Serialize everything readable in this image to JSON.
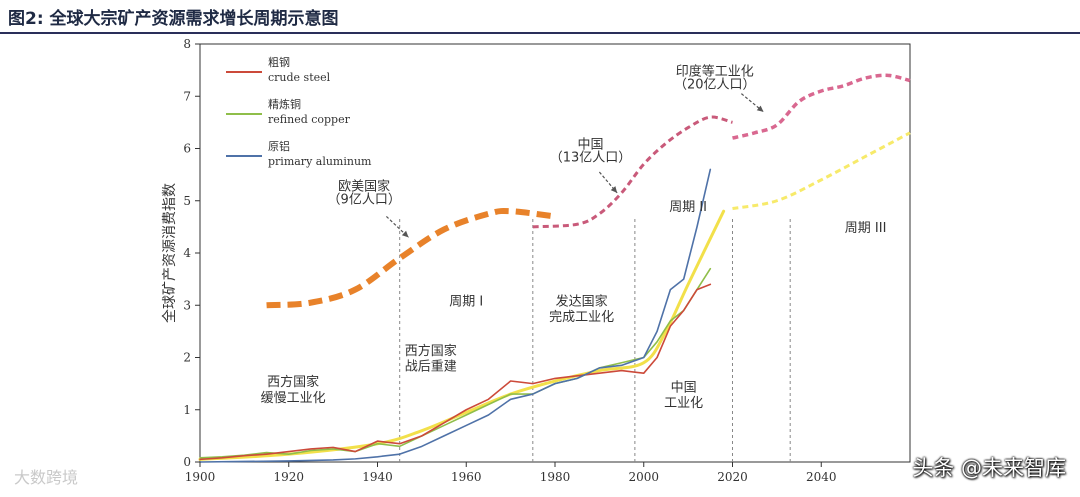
{
  "header": {
    "title": "图2:  全球大宗矿产资源需求增长周期示意图"
  },
  "watermarks": {
    "left": "大数跨境",
    "right": "头条 @未来智库"
  },
  "chart_data": {
    "type": "line",
    "ylabel": "全球矿产资源消费指数",
    "xlim": [
      1900,
      2060
    ],
    "ylim": [
      0,
      8
    ],
    "x_ticks": [
      1900,
      1920,
      1940,
      1960,
      1980,
      2000,
      2020,
      2040
    ],
    "y_ticks": [
      0,
      1,
      2,
      3,
      4,
      5,
      6,
      7,
      8
    ],
    "legend_position": "top-left",
    "legend": [
      {
        "zh": "粗钢",
        "en": "crude steel",
        "color": "#cc4a3a"
      },
      {
        "zh": "精炼铜",
        "en": "refined copper",
        "color": "#8fbe4a"
      },
      {
        "zh": "原铝",
        "en": "primary aluminum",
        "color": "#4f72a8"
      }
    ],
    "series": [
      {
        "name": "crude steel",
        "color": "#cc4a3a",
        "x": [
          1900,
          1905,
          1910,
          1915,
          1920,
          1925,
          1930,
          1935,
          1940,
          1945,
          1950,
          1955,
          1960,
          1965,
          1970,
          1975,
          1980,
          1985,
          1990,
          1995,
          2000,
          2003,
          2006,
          2009,
          2012,
          2015
        ],
        "y": [
          0.05,
          0.08,
          0.12,
          0.15,
          0.2,
          0.25,
          0.28,
          0.2,
          0.4,
          0.35,
          0.5,
          0.75,
          1.0,
          1.2,
          1.55,
          1.5,
          1.6,
          1.65,
          1.7,
          1.75,
          1.7,
          2.0,
          2.6,
          2.9,
          3.3,
          3.4
        ]
      },
      {
        "name": "refined copper",
        "color": "#8fbe4a",
        "x": [
          1900,
          1905,
          1910,
          1915,
          1920,
          1925,
          1930,
          1935,
          1940,
          1945,
          1950,
          1955,
          1960,
          1965,
          1970,
          1975,
          1980,
          1985,
          1990,
          1995,
          2000,
          2003,
          2006,
          2009,
          2012,
          2015
        ],
        "y": [
          0.08,
          0.1,
          0.13,
          0.18,
          0.15,
          0.22,
          0.25,
          0.2,
          0.35,
          0.3,
          0.5,
          0.7,
          0.9,
          1.1,
          1.3,
          1.3,
          1.5,
          1.6,
          1.8,
          1.9,
          2.0,
          2.3,
          2.7,
          2.9,
          3.3,
          3.7
        ]
      },
      {
        "name": "primary aluminum",
        "color": "#4f72a8",
        "x": [
          1900,
          1910,
          1920,
          1930,
          1935,
          1940,
          1945,
          1950,
          1955,
          1960,
          1965,
          1970,
          1975,
          1980,
          1985,
          1990,
          1995,
          2000,
          2003,
          2006,
          2009,
          2012,
          2015
        ],
        "y": [
          0.0,
          0.01,
          0.02,
          0.04,
          0.06,
          0.1,
          0.15,
          0.3,
          0.5,
          0.7,
          0.9,
          1.2,
          1.3,
          1.5,
          1.6,
          1.8,
          1.85,
          2.0,
          2.5,
          3.3,
          3.5,
          4.5,
          5.6
        ]
      },
      {
        "name": "trend-yellow-solid",
        "color": "#f2e04a",
        "x": [
          1900,
          1920,
          1940,
          1950,
          1960,
          1970,
          1980,
          1990,
          2000,
          2005,
          2010,
          2018
        ],
        "y": [
          0.05,
          0.15,
          0.35,
          0.6,
          0.95,
          1.3,
          1.55,
          1.75,
          1.9,
          2.5,
          3.4,
          4.8
        ]
      },
      {
        "name": "trend-yellow-dashed",
        "color": "#f7ea6a",
        "x": [
          2020,
          2030,
          2040,
          2050,
          2060
        ],
        "y": [
          4.85,
          5.0,
          5.4,
          5.85,
          6.3
        ]
      },
      {
        "name": "cycle-1-curve",
        "color": "#e8822a",
        "x": [
          1915,
          1925,
          1935,
          1945,
          1955,
          1965,
          1970,
          1980
        ],
        "y": [
          3.0,
          3.05,
          3.3,
          3.9,
          4.45,
          4.75,
          4.8,
          4.7
        ]
      },
      {
        "name": "cycle-2-curve",
        "color": "#c95a7a",
        "x": [
          1975,
          1985,
          1990,
          1995,
          2000,
          2005,
          2010,
          2015,
          2020
        ],
        "y": [
          4.5,
          4.55,
          4.75,
          5.15,
          5.7,
          6.1,
          6.4,
          6.6,
          6.5
        ]
      },
      {
        "name": "cycle-3-curve",
        "color": "#d96890",
        "x": [
          2020,
          2025,
          2030,
          2035,
          2040,
          2045,
          2050,
          2055,
          2060
        ],
        "y": [
          6.2,
          6.3,
          6.45,
          6.9,
          7.1,
          7.2,
          7.35,
          7.4,
          7.3
        ]
      }
    ],
    "dividers": [
      1945,
      1975,
      1998,
      2020,
      2033
    ],
    "annotations": [
      {
        "text": "欧美国家",
        "x": 1937,
        "y": 5.2
      },
      {
        "text": "（9亿人口）",
        "x": 1937,
        "y": 4.95
      },
      {
        "text": "中国",
        "x": 1988,
        "y": 6.0
      },
      {
        "text": "（13亿人口）",
        "x": 1988,
        "y": 5.75
      },
      {
        "text": "印度等工业化",
        "x": 2016,
        "y": 7.4
      },
      {
        "text": "（20亿人口）",
        "x": 2016,
        "y": 7.15
      },
      {
        "text": "周期 I",
        "x": 1960,
        "y": 3.0
      },
      {
        "text": "周期 II",
        "x": 2010,
        "y": 4.8
      },
      {
        "text": "周期 III",
        "x": 2050,
        "y": 4.4
      },
      {
        "text": "发达国家",
        "x": 1986,
        "y": 3.0
      },
      {
        "text": "完成工业化",
        "x": 1986,
        "y": 2.7
      },
      {
        "text": "西方国家",
        "x": 1952,
        "y": 2.05
      },
      {
        "text": "战后重建",
        "x": 1952,
        "y": 1.75
      },
      {
        "text": "西方国家",
        "x": 1921,
        "y": 1.45
      },
      {
        "text": "缓慢工业化",
        "x": 1921,
        "y": 1.15
      },
      {
        "text": "中国",
        "x": 2009,
        "y": 1.35
      },
      {
        "text": "工业化",
        "x": 2009,
        "y": 1.05
      }
    ]
  }
}
